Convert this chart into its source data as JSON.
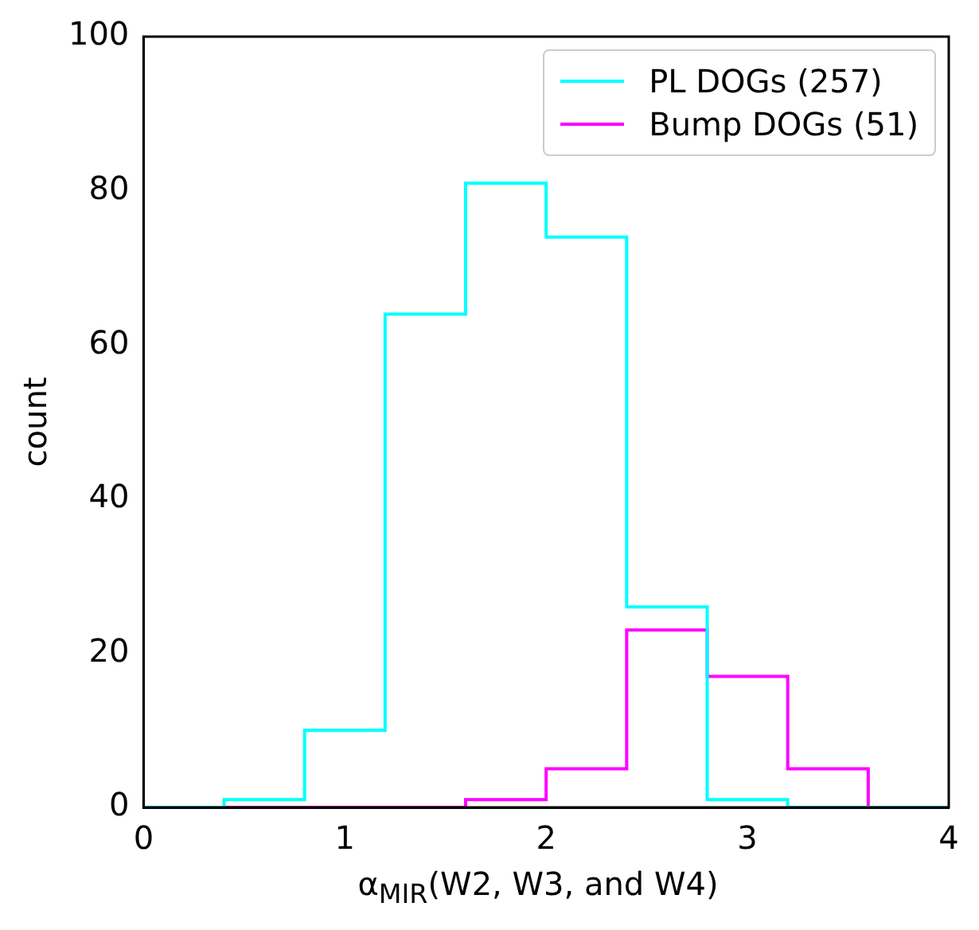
{
  "chart_data": {
    "type": "histogram",
    "xlabel": "α$_{MIR}$(W2, W3, and W4)",
    "ylabel": "count",
    "bins": [
      0,
      0.4,
      0.8,
      1.2,
      1.6,
      2.0,
      2.4,
      2.8,
      3.2,
      3.6,
      4.0
    ],
    "series": [
      {
        "name": "PL DOGs (257)",
        "color": "#00ffff",
        "values": [
          0,
          1,
          10,
          64,
          81,
          74,
          26,
          1,
          0,
          0
        ]
      },
      {
        "name": "Bump DOGs (51)",
        "color": "#ff00ff",
        "values": [
          0,
          0,
          0,
          0,
          1,
          5,
          23,
          17,
          5,
          0
        ]
      }
    ],
    "xlim": [
      0,
      4
    ],
    "xticks": [
      0,
      1,
      2,
      3,
      4
    ],
    "ylim": [
      0,
      100
    ],
    "yticks": [
      0,
      20,
      40,
      60,
      80,
      100
    ],
    "grid": false,
    "legend": "top right"
  }
}
